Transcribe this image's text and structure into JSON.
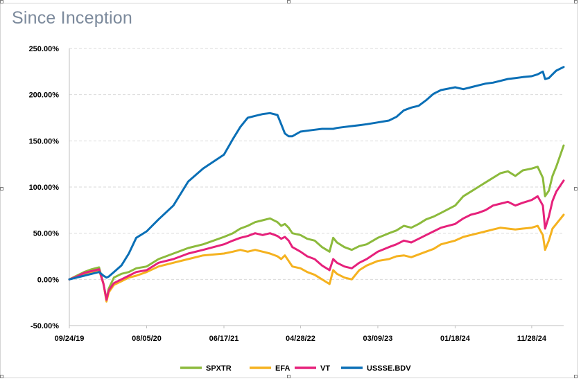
{
  "chart_data": {
    "type": "line",
    "title": "Since Inception",
    "xlabel": "",
    "ylabel": "",
    "ylim": [
      -50,
      250
    ],
    "yticks": [
      -50,
      0,
      50,
      100,
      150,
      200,
      250
    ],
    "ytick_labels": [
      "-50.00%",
      "0.00%",
      "50.00%",
      "100.00%",
      "150.00%",
      "200.00%",
      "250.00%"
    ],
    "xlim": [
      0,
      66.5
    ],
    "xticks": [
      0,
      10.4,
      20.8,
      31.1,
      41.5,
      51.9,
      62.2
    ],
    "xtick_labels": [
      "09/24/19",
      "08/05/20",
      "06/17/21",
      "04/28/22",
      "03/09/23",
      "01/18/24",
      "11/28/24"
    ],
    "grid": "horizontal dashed",
    "legend_position": "bottom",
    "series": [
      {
        "name": "SPXTR",
        "color": "#8cba3c",
        "x": [
          0,
          1,
          2,
          3,
          4,
          4.6,
          5,
          5.3,
          6,
          7,
          8,
          9,
          10.4,
          12,
          14,
          16,
          18,
          20.8,
          22,
          23,
          24,
          25,
          26,
          27,
          28,
          28.5,
          29,
          29.5,
          30,
          31.1,
          32,
          33,
          34,
          35,
          35.5,
          36,
          37,
          38,
          39,
          40,
          41.5,
          43,
          44,
          45,
          46,
          47,
          48,
          49,
          50,
          51.9,
          53,
          54,
          55,
          56,
          57,
          58,
          59,
          60,
          61,
          62.2,
          63,
          63.7,
          64,
          64.5,
          65,
          65.5,
          66.5
        ],
        "values": [
          0,
          4,
          8,
          11,
          13,
          -5,
          -22,
          -10,
          2,
          6,
          8,
          12,
          14,
          22,
          28,
          34,
          38,
          46,
          50,
          55,
          58,
          62,
          64,
          66,
          62,
          58,
          60,
          56,
          50,
          48,
          44,
          42,
          35,
          30,
          45,
          40,
          35,
          32,
          36,
          38,
          45,
          50,
          53,
          58,
          56,
          60,
          65,
          68,
          72,
          80,
          90,
          95,
          100,
          105,
          110,
          115,
          117,
          112,
          118,
          120,
          122,
          110,
          90,
          96,
          112,
          122,
          145
        ]
      },
      {
        "name": "EFA",
        "color": "#f5b21f",
        "x": [
          0,
          1,
          2,
          3,
          4,
          4.6,
          5,
          5.3,
          6,
          7,
          8,
          9,
          10.4,
          12,
          14,
          16,
          18,
          20.8,
          22,
          23,
          24,
          25,
          26,
          27,
          28,
          28.5,
          29,
          29.5,
          30,
          31.1,
          32,
          33,
          34,
          35,
          35.5,
          36,
          37,
          38,
          39,
          40,
          41.5,
          43,
          44,
          45,
          46,
          47,
          48,
          49,
          50,
          51.9,
          53,
          54,
          55,
          56,
          57,
          58,
          59,
          60,
          61,
          62.2,
          63,
          63.7,
          64,
          64.5,
          65,
          65.5,
          66.5
        ],
        "values": [
          0,
          3,
          6,
          8,
          10,
          -5,
          -24,
          -14,
          -6,
          -2,
          2,
          4,
          8,
          14,
          18,
          22,
          26,
          28,
          30,
          32,
          30,
          32,
          30,
          28,
          25,
          22,
          26,
          20,
          14,
          12,
          8,
          5,
          0,
          -5,
          10,
          6,
          2,
          0,
          10,
          15,
          20,
          22,
          25,
          26,
          24,
          27,
          30,
          33,
          38,
          42,
          46,
          48,
          50,
          52,
          54,
          56,
          55,
          54,
          55,
          56,
          58,
          48,
          32,
          42,
          55,
          60,
          70
        ]
      },
      {
        "name": "VT",
        "color": "#e6217b",
        "x": [
          0,
          1,
          2,
          3,
          4,
          4.6,
          5,
          5.3,
          6,
          7,
          8,
          9,
          10.4,
          12,
          14,
          16,
          18,
          20.8,
          22,
          23,
          24,
          25,
          26,
          27,
          28,
          28.5,
          29,
          29.5,
          30,
          31.1,
          32,
          33,
          34,
          35,
          35.5,
          36,
          37,
          38,
          39,
          40,
          41.5,
          43,
          44,
          45,
          46,
          47,
          48,
          49,
          50,
          51.9,
          53,
          54,
          55,
          56,
          57,
          58,
          59,
          60,
          61,
          62.2,
          63,
          63.7,
          64,
          64.5,
          65,
          65.5,
          66.5
        ],
        "values": [
          0,
          3,
          7,
          9,
          11,
          -5,
          -22,
          -12,
          -4,
          0,
          4,
          8,
          10,
          18,
          22,
          28,
          32,
          38,
          42,
          45,
          47,
          50,
          48,
          50,
          47,
          44,
          46,
          42,
          35,
          30,
          25,
          22,
          15,
          10,
          22,
          18,
          14,
          12,
          18,
          22,
          30,
          35,
          38,
          42,
          40,
          44,
          48,
          52,
          56,
          60,
          66,
          70,
          72,
          75,
          80,
          82,
          84,
          80,
          83,
          86,
          90,
          80,
          55,
          68,
          85,
          95,
          107
        ]
      },
      {
        "name": "USSSE.BDV",
        "color": "#0a6fb6",
        "x": [
          0,
          1,
          2,
          3,
          4,
          4.6,
          5,
          5.3,
          6,
          7,
          8,
          9,
          10.4,
          12,
          14,
          16,
          18,
          20.8,
          22,
          23,
          24,
          25,
          26,
          27,
          28,
          28.5,
          29,
          29.5,
          30,
          31.1,
          32,
          33,
          34,
          35,
          35.5,
          36,
          37,
          38,
          39,
          40,
          41.5,
          43,
          44,
          45,
          46,
          47,
          48,
          49,
          50,
          51.9,
          53,
          54,
          55,
          56,
          57,
          58,
          59,
          60,
          61,
          62.2,
          63,
          63.7,
          64,
          64.5,
          65,
          65.5,
          66.5
        ],
        "values": [
          0,
          2,
          4,
          6,
          8,
          4,
          2,
          3,
          8,
          15,
          28,
          45,
          52,
          65,
          80,
          106,
          120,
          135,
          152,
          165,
          175,
          177,
          179,
          180,
          178,
          168,
          158,
          155,
          155,
          160,
          161,
          162,
          163,
          163,
          163,
          164,
          165,
          166,
          167,
          168,
          170,
          172,
          176,
          183,
          186,
          188,
          194,
          201,
          205,
          208,
          206,
          208,
          210,
          212,
          213,
          215,
          217,
          218,
          219,
          220,
          222,
          225,
          217,
          218,
          222,
          226,
          230
        ]
      }
    ]
  }
}
